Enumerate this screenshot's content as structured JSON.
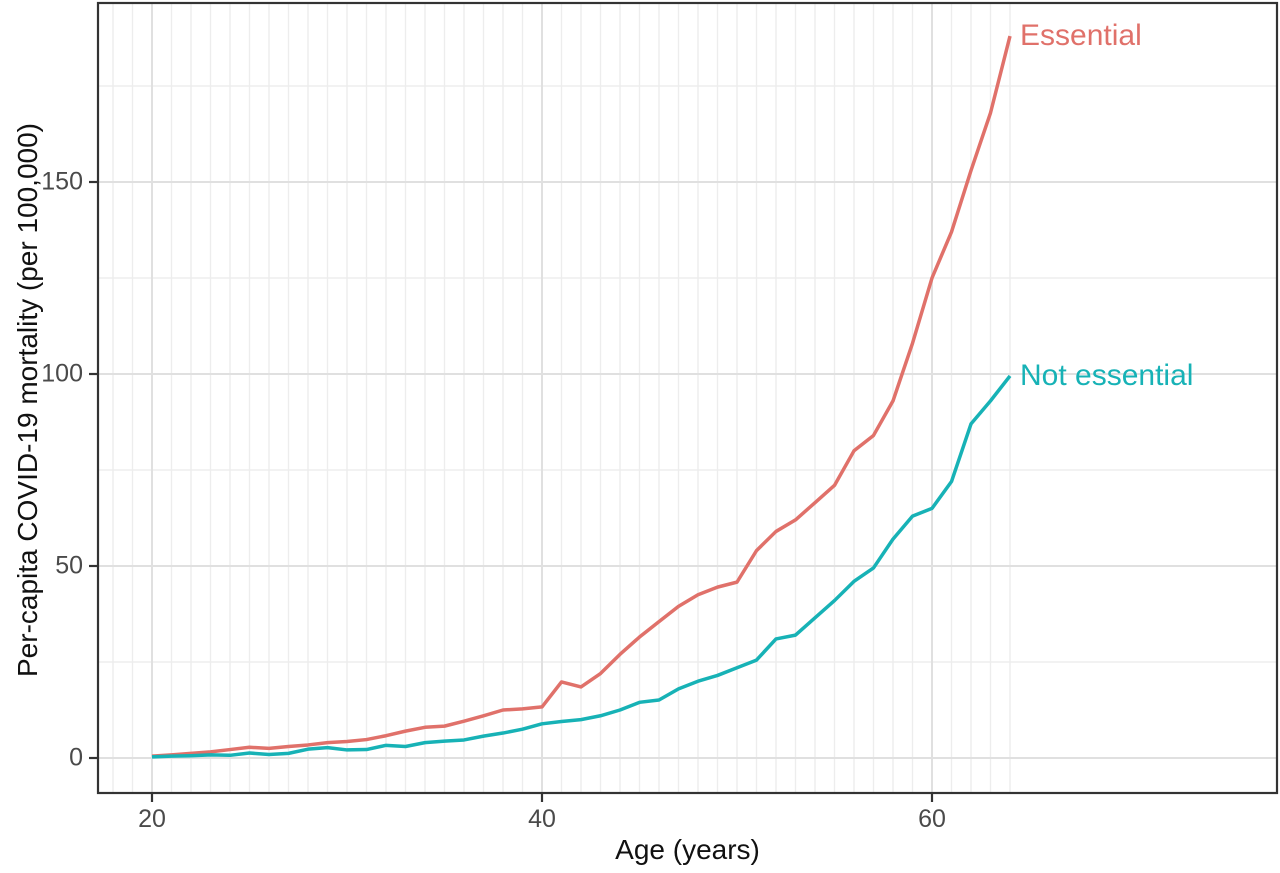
{
  "chart_data": {
    "type": "line",
    "title": "",
    "xlabel": "Age (years)",
    "ylabel": "Per-capita COVID-19 mortality (per 100,000)",
    "x": [
      20,
      21,
      22,
      23,
      24,
      25,
      26,
      27,
      28,
      29,
      30,
      31,
      32,
      33,
      34,
      35,
      36,
      37,
      38,
      39,
      40,
      41,
      42,
      43,
      44,
      45,
      46,
      47,
      48,
      49,
      50,
      51,
      52,
      53,
      54,
      55,
      56,
      57,
      58,
      59,
      60,
      61,
      62,
      63,
      64
    ],
    "series": [
      {
        "name": "Essential",
        "color": "#E0716A",
        "values": [
          0.5,
          0.8,
          1.2,
          1.6,
          2.2,
          2.8,
          2.5,
          3.0,
          3.4,
          4.0,
          4.3,
          4.8,
          5.8,
          7.0,
          8.0,
          8.3,
          9.6,
          11.0,
          12.5,
          12.8,
          13.3,
          19.8,
          18.5,
          22.0,
          27.0,
          31.5,
          35.5,
          39.5,
          42.5,
          44.5,
          45.8,
          54.0,
          59.0,
          62.0,
          66.5,
          71.0,
          80.0,
          84.0,
          93.0,
          108.0,
          125.0,
          137.0,
          153.0,
          168.0,
          188.0
        ]
      },
      {
        "name": "Not essential",
        "color": "#17B2B6",
        "values": [
          0.3,
          0.5,
          0.6,
          0.8,
          0.7,
          1.3,
          0.9,
          1.2,
          2.3,
          2.7,
          2.1,
          2.2,
          3.3,
          3.0,
          4.0,
          4.4,
          4.7,
          5.7,
          6.5,
          7.5,
          8.9,
          9.5,
          10.0,
          11.0,
          12.5,
          14.5,
          15.1,
          18.0,
          20.0,
          21.5,
          23.5,
          25.5,
          31.0,
          32.0,
          36.5,
          41.0,
          46.0,
          49.5,
          57.0,
          63.0,
          65.0,
          72.0,
          87.0,
          93.0,
          99.5
        ]
      }
    ],
    "x_tick_values": [
      20,
      40,
      60
    ],
    "x_tick_labels": [
      "20",
      "40",
      "60"
    ],
    "y_tick_values": [
      0,
      50,
      100,
      150
    ],
    "y_tick_labels": [
      "0",
      "50",
      "100",
      "150"
    ],
    "xlim": [
      17.2,
      77.7
    ],
    "ylim": [
      -9,
      196.5
    ],
    "x_gridlines": {
      "from": 18,
      "to": 64,
      "step": 1,
      "major": [
        20,
        40,
        60
      ]
    },
    "y_gridlines": {
      "from": 0,
      "to": 175,
      "step": 25,
      "major": [
        0,
        50,
        100,
        150
      ]
    },
    "grid": true,
    "legend_position": "direct-labels-right",
    "annotations": [
      {
        "text": "Essential",
        "age": 64.5,
        "value": 188,
        "color": "#E0716A"
      },
      {
        "text": "Not essential",
        "age": 64.5,
        "value": 99.5,
        "color": "#17B2B6"
      }
    ]
  },
  "styles": {
    "background": "#FFFFFF",
    "panel_background": "#FFFFFF",
    "grid_minor_color": "#EDEDED",
    "grid_major_color": "#E0E0E0",
    "panel_border_color": "#333333",
    "tick_mark_color": "#333333",
    "tick_label_color": "#4A4A4A",
    "axis_title_color": "#111111",
    "line_width": 3.5
  }
}
